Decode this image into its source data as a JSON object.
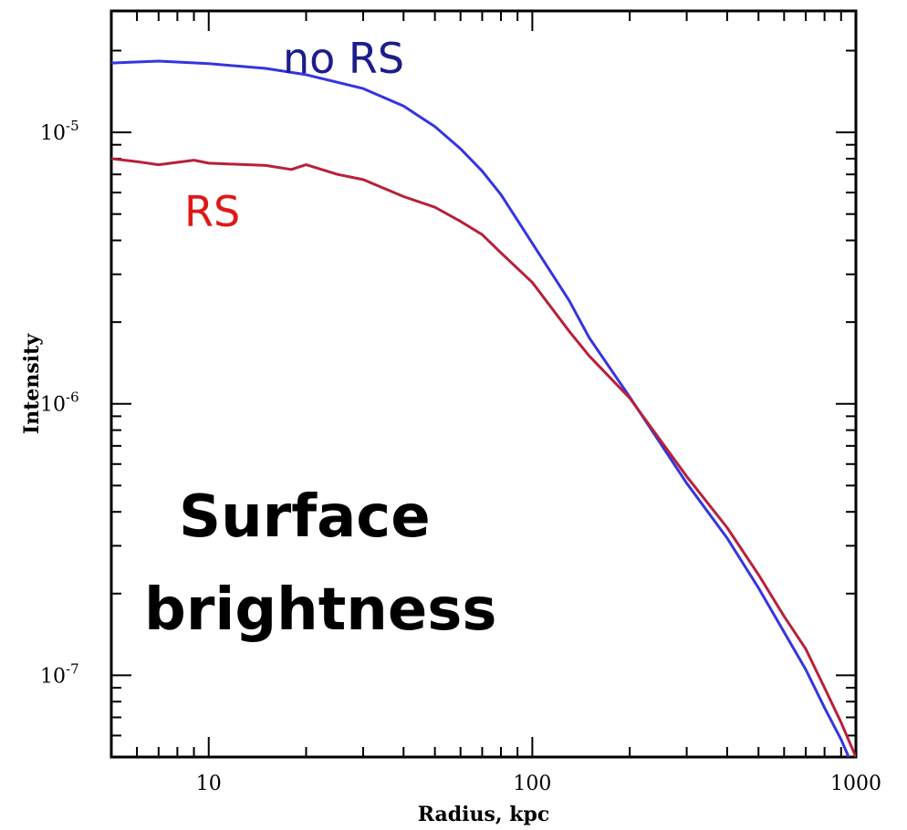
{
  "chart_data": {
    "type": "line",
    "title": "",
    "xlabel": "Radius, kpc",
    "ylabel": "Intensity",
    "xscale": "log",
    "yscale": "log",
    "xlim": [
      5,
      1000
    ],
    "ylim": [
      5e-08,
      2.8e-05
    ],
    "x_ticks": [
      {
        "value": 10,
        "label": "10"
      },
      {
        "value": 100,
        "label": "100"
      },
      {
        "value": 1000,
        "label": "1000"
      }
    ],
    "y_ticks": [
      {
        "value": 1e-05,
        "base": "10",
        "exp": "-5"
      },
      {
        "value": 1e-06,
        "base": "10",
        "exp": "-6"
      },
      {
        "value": 1e-07,
        "base": "10",
        "exp": "-7"
      }
    ],
    "grid": false,
    "series": [
      {
        "name": "no RS",
        "color": "#3535e0",
        "points": [
          [
            5,
            1.8e-05
          ],
          [
            7,
            1.83e-05
          ],
          [
            10,
            1.79e-05
          ],
          [
            15,
            1.72e-05
          ],
          [
            20,
            1.63e-05
          ],
          [
            30,
            1.45e-05
          ],
          [
            40,
            1.25e-05
          ],
          [
            50,
            1.05e-05
          ],
          [
            60,
            8.7e-06
          ],
          [
            70,
            7.2e-06
          ],
          [
            80,
            5.9e-06
          ],
          [
            100,
            3.9e-06
          ],
          [
            130,
            2.4e-06
          ],
          [
            150,
            1.75e-06
          ],
          [
            200,
            1.06e-06
          ],
          [
            300,
            5.1e-07
          ],
          [
            400,
            3.2e-07
          ],
          [
            500,
            2.1e-07
          ],
          [
            700,
            1.05e-07
          ],
          [
            800,
            7.6e-08
          ],
          [
            900,
            5.8e-08
          ],
          [
            950,
            5e-08
          ]
        ]
      },
      {
        "name": "RS",
        "color": "#b8203a",
        "points": [
          [
            5,
            8e-06
          ],
          [
            6,
            7.8e-06
          ],
          [
            7,
            7.6e-06
          ],
          [
            9,
            7.9e-06
          ],
          [
            10,
            7.7e-06
          ],
          [
            15,
            7.55e-06
          ],
          [
            18,
            7.3e-06
          ],
          [
            20,
            7.6e-06
          ],
          [
            25,
            7e-06
          ],
          [
            30,
            6.7e-06
          ],
          [
            40,
            5.8e-06
          ],
          [
            50,
            5.3e-06
          ],
          [
            60,
            4.7e-06
          ],
          [
            70,
            4.2e-06
          ],
          [
            80,
            3.6e-06
          ],
          [
            100,
            2.8e-06
          ],
          [
            130,
            1.85e-06
          ],
          [
            150,
            1.5e-06
          ],
          [
            200,
            1.05e-06
          ],
          [
            300,
            5.4e-07
          ],
          [
            400,
            3.5e-07
          ],
          [
            500,
            2.35e-07
          ],
          [
            600,
            1.65e-07
          ],
          [
            700,
            1.25e-07
          ],
          [
            800,
            9e-08
          ],
          [
            900,
            6.7e-08
          ],
          [
            1000,
            5e-08
          ]
        ]
      }
    ],
    "annotations": {
      "no_rs": "no RS",
      "rs": "RS",
      "panel_line1": "Surface",
      "panel_line2": "brightness"
    }
  }
}
